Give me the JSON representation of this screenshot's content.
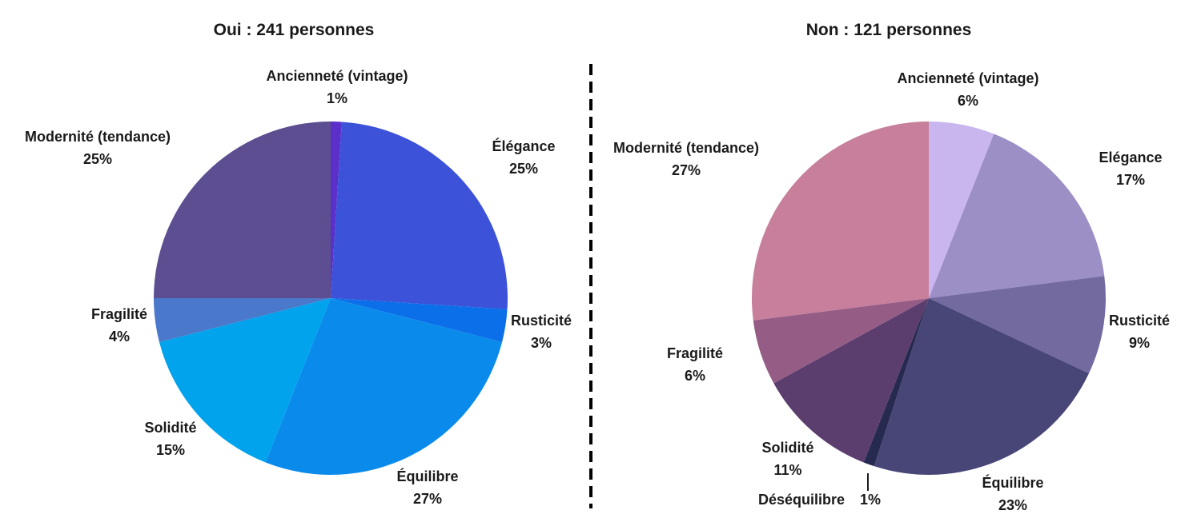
{
  "chart_data": [
    {
      "type": "pie",
      "title": "Oui : 241 personnes",
      "slices": [
        {
          "label": "Ancienneté (vintage)",
          "value_label": "1%",
          "value": 1,
          "color": "#5b2fc9"
        },
        {
          "label": "Élégance",
          "value_label": "25%",
          "value": 25,
          "color": "#3b52d9"
        },
        {
          "label": "Rusticité",
          "value_label": "3%",
          "value": 3,
          "color": "#0a6fe8"
        },
        {
          "label": "Équilibre",
          "value_label": "27%",
          "value": 27,
          "color": "#0a8bec"
        },
        {
          "label": "Solidité",
          "value_label": "15%",
          "value": 15,
          "color": "#00a3ec"
        },
        {
          "label": "Fragilité",
          "value_label": "4%",
          "value": 4,
          "color": "#4a79cc"
        },
        {
          "label": "Modernité (tendance)",
          "value_label": "25%",
          "value": 25,
          "color": "#5d4e91"
        }
      ]
    },
    {
      "type": "pie",
      "title": "Non : 121 personnes",
      "slices": [
        {
          "label": "Ancienneté (vintage)",
          "value_label": "6%",
          "value": 6,
          "color": "#c9b6ef"
        },
        {
          "label": "Elégance",
          "value_label": "17%",
          "value": 17,
          "color": "#9c8fc6"
        },
        {
          "label": "Rusticité",
          "value_label": "9%",
          "value": 9,
          "color": "#736a9f"
        },
        {
          "label": "Équilibre",
          "value_label": "23%",
          "value": 23,
          "color": "#484677"
        },
        {
          "label": "Déséquilibre",
          "value_label": "1%",
          "value": 1,
          "color": "#262a50"
        },
        {
          "label": "Solidité",
          "value_label": "11%",
          "value": 11,
          "color": "#5c3e6e"
        },
        {
          "label": "Fragilité",
          "value_label": "6%",
          "value": 6,
          "color": "#955d86"
        },
        {
          "label": "Modernité (tendance)",
          "value_label": "27%",
          "value": 27,
          "color": "#c77f9b"
        }
      ]
    }
  ]
}
